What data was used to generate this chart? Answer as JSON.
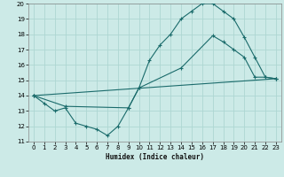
{
  "background_color": "#cceae7",
  "grid_color": "#add6d2",
  "line_color": "#1a6b6b",
  "xlim": [
    -0.5,
    23.5
  ],
  "ylim": [
    11,
    20
  ],
  "xlabel": "Humidex (Indice chaleur)",
  "xticks": [
    0,
    1,
    2,
    3,
    4,
    5,
    6,
    7,
    8,
    9,
    10,
    11,
    12,
    13,
    14,
    15,
    16,
    17,
    18,
    19,
    20,
    21,
    22,
    23
  ],
  "yticks": [
    11,
    12,
    13,
    14,
    15,
    16,
    17,
    18,
    19,
    20
  ],
  "line1_x": [
    0,
    1,
    2,
    3,
    4,
    5,
    6,
    7,
    8,
    9,
    10,
    11,
    12,
    13,
    14,
    15,
    16,
    17,
    18,
    19,
    20,
    21,
    22,
    23
  ],
  "line1_y": [
    14.0,
    13.5,
    13.0,
    13.2,
    12.2,
    12.0,
    11.8,
    11.4,
    12.0,
    13.2,
    14.5,
    16.3,
    17.3,
    18.0,
    19.0,
    19.5,
    20.0,
    20.0,
    19.5,
    19.0,
    17.8,
    16.5,
    15.2,
    15.1
  ],
  "line2_x": [
    0,
    3,
    9,
    10,
    14,
    17,
    18,
    19,
    20,
    21,
    22,
    23
  ],
  "line2_y": [
    14.0,
    13.3,
    13.2,
    14.5,
    15.8,
    17.9,
    17.5,
    17.0,
    16.5,
    15.2,
    15.2,
    15.1
  ],
  "line3_x": [
    0,
    23
  ],
  "line3_y": [
    14.0,
    15.1
  ],
  "marker": "+"
}
